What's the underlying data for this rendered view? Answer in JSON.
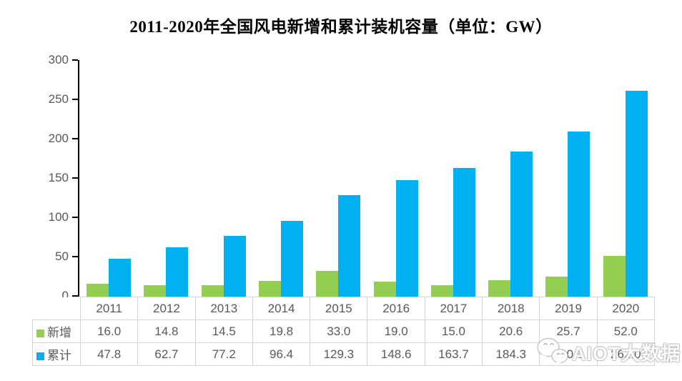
{
  "title": "2011-2020年全国风电新增和累计装机容量（单位：GW）",
  "chart_data": {
    "type": "bar",
    "title": "2011-2020年全国风电新增和累计装机容量（单位：GW）",
    "unit": "GW",
    "categories": [
      "2011",
      "2012",
      "2013",
      "2014",
      "2015",
      "2016",
      "2017",
      "2018",
      "2019",
      "2020"
    ],
    "series": [
      {
        "name": "新增",
        "key": "new",
        "color": "#93CE51",
        "values": [
          16.0,
          14.8,
          14.5,
          19.8,
          33.0,
          19.0,
          15.0,
          20.6,
          25.7,
          52.0
        ]
      },
      {
        "name": "累计",
        "key": "cumulative",
        "color": "#00B0F0",
        "values": [
          47.8,
          62.7,
          77.2,
          96.4,
          129.3,
          148.6,
          163.7,
          184.3,
          210.0,
          262.0
        ]
      }
    ],
    "ylim": [
      0,
      300
    ],
    "yticks": [
      0,
      50,
      100,
      150,
      200,
      250,
      300
    ],
    "grid": false,
    "legend_position": "table-left",
    "value_decimals": 1
  },
  "colors": {
    "axis": "#000000",
    "text_gray": "#595959",
    "table_border": "#d4d4d4",
    "series_new": "#93CE51",
    "series_cumulative": "#00B0F0"
  },
  "watermark": {
    "icon": "wechat-icon",
    "text": "AIOT大数据"
  }
}
